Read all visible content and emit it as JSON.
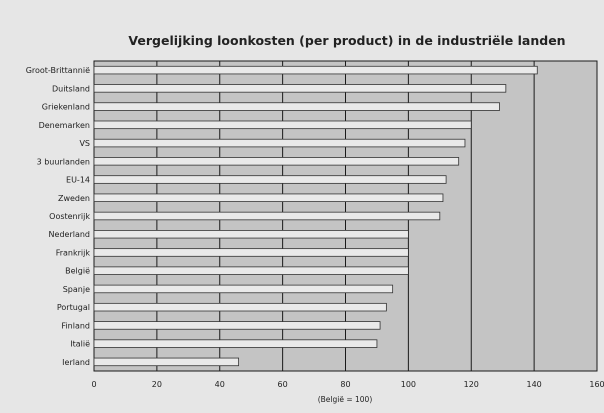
{
  "chart_data": {
    "type": "bar",
    "orientation": "horizontal",
    "title": "Vergelijking loonkosten (per product) in de industriële landen",
    "xlabel": "(België = 100)",
    "ylabel": "",
    "xlim": [
      0,
      160
    ],
    "xticks": [
      0,
      20,
      40,
      60,
      80,
      100,
      120,
      140,
      160
    ],
    "grid": true,
    "categories": [
      "Groot-Brittannië",
      "Duitsland",
      "Griekenland",
      "Denemarken",
      "VS",
      "3 buurlanden",
      "EU-14",
      "Zweden",
      "Oostenrijk",
      "Nederland",
      "Frankrijk",
      "België",
      "Spanje",
      "Portugal",
      "Finland",
      "Italië",
      "Ierland"
    ],
    "values": [
      141,
      131,
      129,
      120,
      118,
      116,
      112,
      111,
      110,
      100,
      100,
      100,
      95,
      93,
      91,
      90,
      46
    ],
    "colors": {
      "page_bg": "#e6e6e6",
      "plot_bg": "#c4c4c4",
      "bar_fill": "#e9e9e9",
      "bar_stroke": "#333333",
      "grid": "#1a1a1a"
    }
  }
}
